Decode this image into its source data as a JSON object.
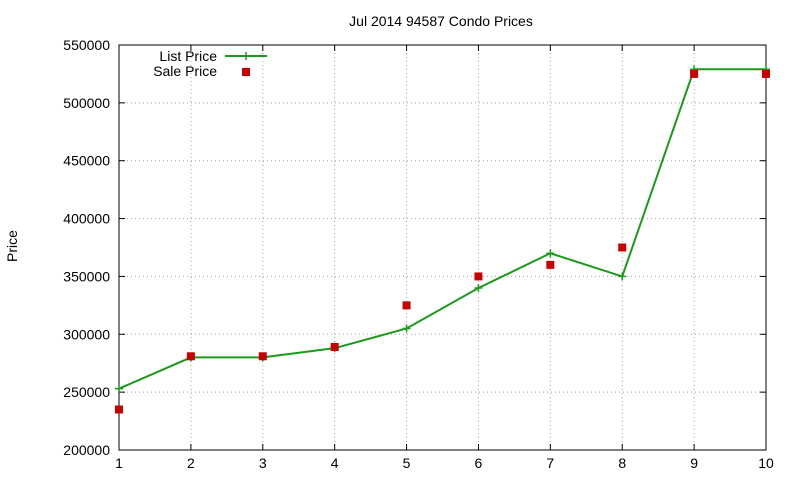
{
  "chart_data": {
    "type": "line",
    "title": "Jul 2014 94587 Condo Prices",
    "xlabel": "",
    "ylabel": "Price",
    "x": [
      1,
      2,
      3,
      4,
      5,
      6,
      7,
      8,
      9,
      10
    ],
    "xlim": [
      1,
      10
    ],
    "ylim": [
      200000,
      550000
    ],
    "xticks": [
      1,
      2,
      3,
      4,
      5,
      6,
      7,
      8,
      9,
      10
    ],
    "yticks": [
      200000,
      250000,
      300000,
      350000,
      400000,
      450000,
      500000,
      550000
    ],
    "grid": true,
    "legend_position": "top-left",
    "series": [
      {
        "name": "List Price",
        "style": "line with plus markers",
        "color": "#1a9a1a",
        "values": [
          253000,
          280000,
          280000,
          288000,
          305000,
          340000,
          370000,
          350000,
          529000,
          529000
        ]
      },
      {
        "name": "Sale Price",
        "style": "square points",
        "color": "#c80000",
        "values": [
          235000,
          281000,
          281000,
          289000,
          325000,
          350000,
          360000,
          375000,
          525000,
          525000
        ]
      }
    ]
  }
}
